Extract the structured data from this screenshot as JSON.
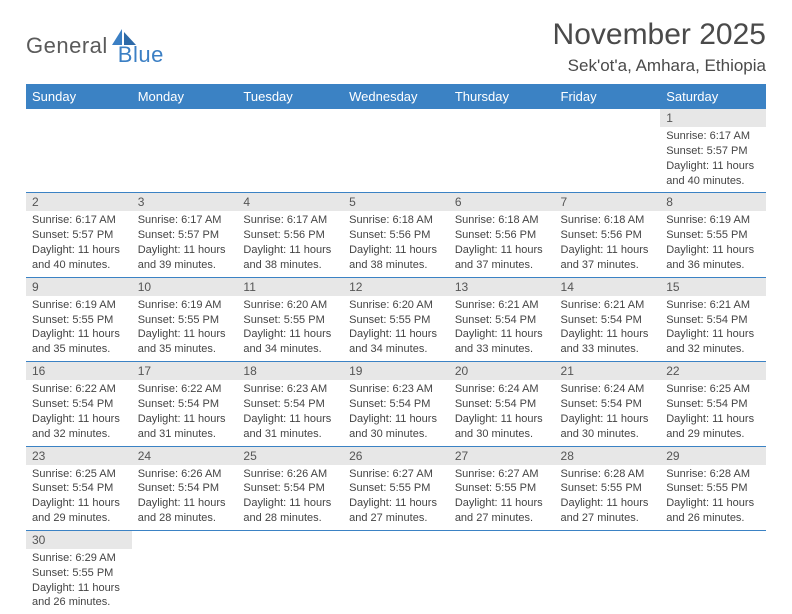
{
  "logo": {
    "part1": "General",
    "part2": "Blue"
  },
  "title": "November 2025",
  "subtitle": "Sek'ot'a, Amhara, Ethiopia",
  "colors": {
    "header_bg": "#3b82c4",
    "header_text": "#ffffff",
    "daynum_bg": "#e7e7e7",
    "daynum_text": "#555555",
    "body_text": "#444444",
    "row_border": "#3b82c4",
    "logo_gray": "#5a5a5a",
    "logo_blue": "#3b7fc4",
    "title_color": "#4a4a4a",
    "background": "#ffffff"
  },
  "fontsizes": {
    "title": 30,
    "subtitle": 17,
    "logo": 22,
    "weekday": 13,
    "daynum": 12,
    "celltext": 11
  },
  "weekdays": [
    "Sunday",
    "Monday",
    "Tuesday",
    "Wednesday",
    "Thursday",
    "Friday",
    "Saturday"
  ],
  "weeks": [
    [
      null,
      null,
      null,
      null,
      null,
      null,
      {
        "n": "1",
        "sr": "6:17 AM",
        "ss": "5:57 PM",
        "dl": "11 hours and 40 minutes."
      }
    ],
    [
      {
        "n": "2",
        "sr": "6:17 AM",
        "ss": "5:57 PM",
        "dl": "11 hours and 40 minutes."
      },
      {
        "n": "3",
        "sr": "6:17 AM",
        "ss": "5:57 PM",
        "dl": "11 hours and 39 minutes."
      },
      {
        "n": "4",
        "sr": "6:17 AM",
        "ss": "5:56 PM",
        "dl": "11 hours and 38 minutes."
      },
      {
        "n": "5",
        "sr": "6:18 AM",
        "ss": "5:56 PM",
        "dl": "11 hours and 38 minutes."
      },
      {
        "n": "6",
        "sr": "6:18 AM",
        "ss": "5:56 PM",
        "dl": "11 hours and 37 minutes."
      },
      {
        "n": "7",
        "sr": "6:18 AM",
        "ss": "5:56 PM",
        "dl": "11 hours and 37 minutes."
      },
      {
        "n": "8",
        "sr": "6:19 AM",
        "ss": "5:55 PM",
        "dl": "11 hours and 36 minutes."
      }
    ],
    [
      {
        "n": "9",
        "sr": "6:19 AM",
        "ss": "5:55 PM",
        "dl": "11 hours and 35 minutes."
      },
      {
        "n": "10",
        "sr": "6:19 AM",
        "ss": "5:55 PM",
        "dl": "11 hours and 35 minutes."
      },
      {
        "n": "11",
        "sr": "6:20 AM",
        "ss": "5:55 PM",
        "dl": "11 hours and 34 minutes."
      },
      {
        "n": "12",
        "sr": "6:20 AM",
        "ss": "5:55 PM",
        "dl": "11 hours and 34 minutes."
      },
      {
        "n": "13",
        "sr": "6:21 AM",
        "ss": "5:54 PM",
        "dl": "11 hours and 33 minutes."
      },
      {
        "n": "14",
        "sr": "6:21 AM",
        "ss": "5:54 PM",
        "dl": "11 hours and 33 minutes."
      },
      {
        "n": "15",
        "sr": "6:21 AM",
        "ss": "5:54 PM",
        "dl": "11 hours and 32 minutes."
      }
    ],
    [
      {
        "n": "16",
        "sr": "6:22 AM",
        "ss": "5:54 PM",
        "dl": "11 hours and 32 minutes."
      },
      {
        "n": "17",
        "sr": "6:22 AM",
        "ss": "5:54 PM",
        "dl": "11 hours and 31 minutes."
      },
      {
        "n": "18",
        "sr": "6:23 AM",
        "ss": "5:54 PM",
        "dl": "11 hours and 31 minutes."
      },
      {
        "n": "19",
        "sr": "6:23 AM",
        "ss": "5:54 PM",
        "dl": "11 hours and 30 minutes."
      },
      {
        "n": "20",
        "sr": "6:24 AM",
        "ss": "5:54 PM",
        "dl": "11 hours and 30 minutes."
      },
      {
        "n": "21",
        "sr": "6:24 AM",
        "ss": "5:54 PM",
        "dl": "11 hours and 30 minutes."
      },
      {
        "n": "22",
        "sr": "6:25 AM",
        "ss": "5:54 PM",
        "dl": "11 hours and 29 minutes."
      }
    ],
    [
      {
        "n": "23",
        "sr": "6:25 AM",
        "ss": "5:54 PM",
        "dl": "11 hours and 29 minutes."
      },
      {
        "n": "24",
        "sr": "6:26 AM",
        "ss": "5:54 PM",
        "dl": "11 hours and 28 minutes."
      },
      {
        "n": "25",
        "sr": "6:26 AM",
        "ss": "5:54 PM",
        "dl": "11 hours and 28 minutes."
      },
      {
        "n": "26",
        "sr": "6:27 AM",
        "ss": "5:55 PM",
        "dl": "11 hours and 27 minutes."
      },
      {
        "n": "27",
        "sr": "6:27 AM",
        "ss": "5:55 PM",
        "dl": "11 hours and 27 minutes."
      },
      {
        "n": "28",
        "sr": "6:28 AM",
        "ss": "5:55 PM",
        "dl": "11 hours and 27 minutes."
      },
      {
        "n": "29",
        "sr": "6:28 AM",
        "ss": "5:55 PM",
        "dl": "11 hours and 26 minutes."
      }
    ],
    [
      {
        "n": "30",
        "sr": "6:29 AM",
        "ss": "5:55 PM",
        "dl": "11 hours and 26 minutes."
      },
      null,
      null,
      null,
      null,
      null,
      null
    ]
  ],
  "labels": {
    "sunrise": "Sunrise:",
    "sunset": "Sunset:",
    "daylight": "Daylight:"
  }
}
